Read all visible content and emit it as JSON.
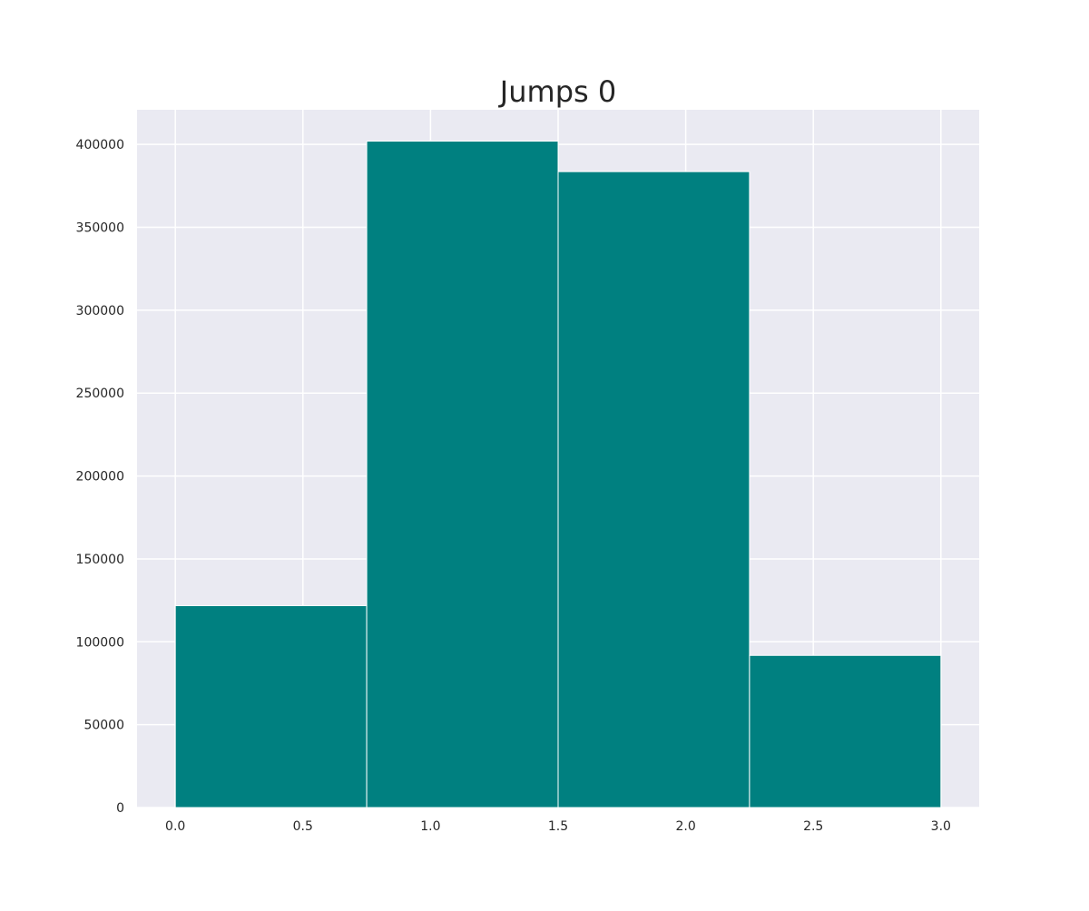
{
  "chart_data": {
    "type": "bar",
    "title": "Jumps 0",
    "xlabel": "",
    "ylabel": "",
    "bins": [
      {
        "x_start": 0.0,
        "x_end": 0.75,
        "value": 121800
      },
      {
        "x_start": 0.75,
        "x_end": 1.5,
        "value": 402000
      },
      {
        "x_start": 1.5,
        "x_end": 2.25,
        "value": 383600
      },
      {
        "x_start": 2.25,
        "x_end": 3.0,
        "value": 91800
      }
    ],
    "xlim": [
      -0.15,
      3.15
    ],
    "ylim": [
      0,
      420900
    ],
    "x_ticks": [
      {
        "value": 0.0,
        "label": "0.0"
      },
      {
        "value": 0.5,
        "label": "0.5"
      },
      {
        "value": 1.0,
        "label": "1.0"
      },
      {
        "value": 1.5,
        "label": "1.5"
      },
      {
        "value": 2.0,
        "label": "2.0"
      },
      {
        "value": 2.5,
        "label": "2.5"
      },
      {
        "value": 3.0,
        "label": "3.0"
      }
    ],
    "y_ticks": [
      {
        "value": 0,
        "label": "0"
      },
      {
        "value": 50000,
        "label": "50000"
      },
      {
        "value": 100000,
        "label": "100000"
      },
      {
        "value": 150000,
        "label": "150000"
      },
      {
        "value": 200000,
        "label": "200000"
      },
      {
        "value": 250000,
        "label": "250000"
      },
      {
        "value": 300000,
        "label": "300000"
      },
      {
        "value": 350000,
        "label": "350000"
      },
      {
        "value": 400000,
        "label": "400000"
      }
    ],
    "grid": true,
    "colors": {
      "bar": "#008080",
      "bar_edge": "#ffffff",
      "plot_background": "#EAEAF2",
      "grid": "#ffffff"
    }
  }
}
